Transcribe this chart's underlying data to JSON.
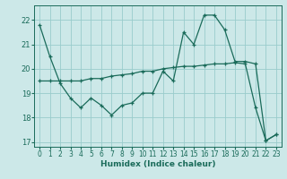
{
  "xlabel": "Humidex (Indice chaleur)",
  "background_color": "#cce8e8",
  "grid_color": "#99cccc",
  "line_color": "#1a6b5a",
  "xlim": [
    -0.5,
    23.5
  ],
  "ylim": [
    16.8,
    22.6
  ],
  "yticks": [
    17,
    18,
    19,
    20,
    21,
    22
  ],
  "xticks": [
    0,
    1,
    2,
    3,
    4,
    5,
    6,
    7,
    8,
    9,
    10,
    11,
    12,
    13,
    14,
    15,
    16,
    17,
    18,
    19,
    20,
    21,
    22,
    23
  ],
  "series1_x": [
    0,
    1,
    2,
    3,
    4,
    5,
    6,
    7,
    8,
    9,
    10,
    11,
    12,
    13,
    14,
    15,
    16,
    17,
    18,
    19,
    20,
    21,
    22,
    23
  ],
  "series1_y": [
    21.8,
    20.5,
    19.4,
    18.8,
    18.4,
    18.8,
    18.5,
    18.1,
    18.5,
    18.6,
    19.0,
    19.0,
    19.9,
    19.5,
    21.5,
    21.0,
    22.2,
    22.2,
    21.6,
    20.3,
    20.3,
    20.2,
    17.05,
    17.3
  ],
  "series2_x": [
    0,
    1,
    2,
    3,
    4,
    5,
    6,
    7,
    8,
    9,
    10,
    11,
    12,
    13,
    14,
    15,
    16,
    17,
    18,
    19,
    20,
    21,
    22,
    23
  ],
  "series2_y": [
    19.5,
    19.5,
    19.5,
    19.5,
    19.5,
    19.6,
    19.6,
    19.7,
    19.75,
    19.8,
    19.9,
    19.9,
    20.0,
    20.05,
    20.1,
    20.1,
    20.15,
    20.2,
    20.2,
    20.25,
    20.2,
    18.4,
    17.05,
    17.3
  ]
}
